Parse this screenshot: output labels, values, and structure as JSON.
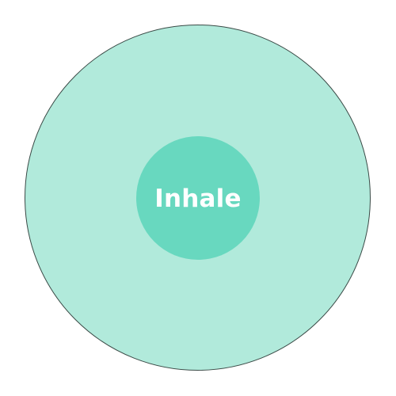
{
  "breathing": {
    "phase_label": "Inhale"
  },
  "colors": {
    "outer_ring": "#b1eadb",
    "inner_circle": "#68d8bf",
    "label_text": "#ffffff",
    "background": "#ffffff"
  }
}
